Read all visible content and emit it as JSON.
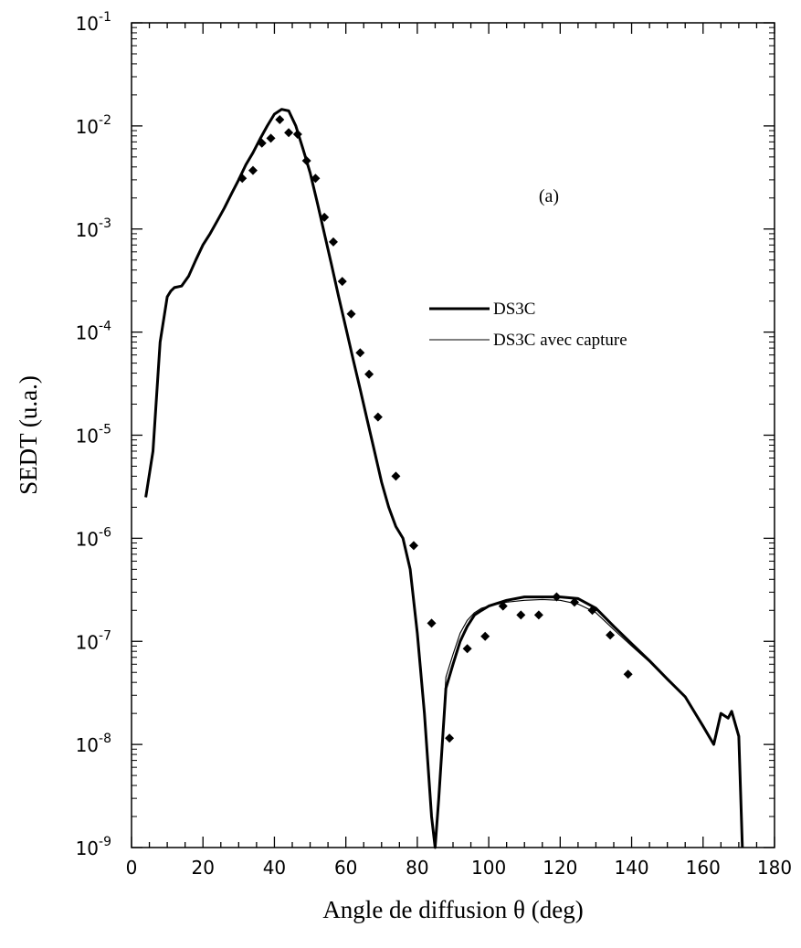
{
  "chart_data": {
    "type": "line",
    "title": "",
    "panel_label": "(a)",
    "xlabel": "Angle de diffusion θ (deg)",
    "ylabel": "SEDT (u.a.)",
    "xlim": [
      0,
      180
    ],
    "ylim": [
      1e-09,
      0.1
    ],
    "yscale": "log",
    "x_ticks": [
      0,
      20,
      40,
      60,
      80,
      100,
      120,
      140,
      160,
      180
    ],
    "y_tick_exponents": [
      -9,
      -8,
      -7,
      -6,
      -5,
      -4,
      -3,
      -2,
      -1
    ],
    "grid": false,
    "legend_position": "center-right",
    "series": [
      {
        "name": "DS3C",
        "style": "thick-solid",
        "color": "#000000",
        "x": [
          4,
          6,
          8,
          10,
          11,
          12,
          14,
          16,
          18,
          20,
          22,
          24,
          26,
          28,
          30,
          32,
          34,
          36,
          38,
          40,
          42,
          44,
          46,
          48,
          50,
          52,
          54,
          56,
          58,
          60,
          62,
          64,
          66,
          68,
          70,
          72,
          74,
          76,
          78,
          80,
          82,
          84,
          85,
          86,
          88,
          90,
          92,
          94,
          96,
          98,
          100,
          105,
          110,
          115,
          120,
          125,
          130,
          135,
          140,
          145,
          150,
          155,
          160,
          163,
          165,
          167,
          168,
          170,
          171
        ],
        "y": [
          2.5e-06,
          7e-06,
          8e-05,
          0.00022,
          0.00025,
          0.00027,
          0.00028,
          0.00035,
          0.0005,
          0.0007,
          0.0009,
          0.0012,
          0.0016,
          0.0022,
          0.003,
          0.0042,
          0.0055,
          0.0075,
          0.01,
          0.013,
          0.0145,
          0.014,
          0.01,
          0.006,
          0.0035,
          0.0018,
          0.0009,
          0.00045,
          0.00022,
          0.00011,
          5.5e-05,
          2.8e-05,
          1.4e-05,
          7e-06,
          3.5e-06,
          2e-06,
          1.3e-06,
          1e-06,
          5e-07,
          1.2e-07,
          2e-08,
          2e-09,
          1e-09,
          3e-09,
          3.5e-08,
          6e-08,
          1e-07,
          1.4e-07,
          1.8e-07,
          2e-07,
          2.2e-07,
          2.5e-07,
          2.7e-07,
          2.7e-07,
          2.7e-07,
          2.6e-07,
          2.1e-07,
          1.4e-07,
          9.5e-08,
          6.5e-08,
          4.3e-08,
          2.9e-08,
          1.5e-08,
          1e-08,
          2e-08,
          1.8e-08,
          2.1e-08,
          1.2e-08,
          1e-09
        ]
      },
      {
        "name": "DS3C avec capture",
        "style": "thin-solid",
        "color": "#000000",
        "x": [
          4,
          6,
          8,
          10,
          11,
          12,
          14,
          16,
          18,
          20,
          22,
          24,
          26,
          28,
          30,
          32,
          34,
          36,
          38,
          40,
          42,
          44,
          46,
          48,
          50,
          52,
          54,
          56,
          58,
          60,
          62,
          64,
          66,
          68,
          70,
          72,
          74,
          76,
          78,
          80,
          82,
          84,
          85,
          86,
          88,
          90,
          92,
          94,
          96,
          98,
          100,
          105,
          110,
          115,
          120,
          125,
          130,
          135,
          140,
          145,
          150,
          155,
          160,
          163,
          165,
          167,
          168,
          170,
          171
        ],
        "y": [
          2.5e-06,
          7e-06,
          8e-05,
          0.00022,
          0.00025,
          0.00027,
          0.00028,
          0.00035,
          0.0005,
          0.0007,
          0.0009,
          0.0012,
          0.0016,
          0.0022,
          0.003,
          0.0042,
          0.0055,
          0.0075,
          0.01,
          0.013,
          0.0145,
          0.014,
          0.01,
          0.006,
          0.0035,
          0.0018,
          0.0009,
          0.00045,
          0.00022,
          0.00011,
          5.5e-05,
          2.8e-05,
          1.4e-05,
          7e-06,
          3.5e-06,
          2e-06,
          1.3e-06,
          1e-06,
          5e-07,
          1.2e-07,
          2e-08,
          2e-09,
          1e-09,
          3e-09,
          4.5e-08,
          7.5e-08,
          1.2e-07,
          1.6e-07,
          1.9e-07,
          2.1e-07,
          2.2e-07,
          2.4e-07,
          2.5e-07,
          2.55e-07,
          2.5e-07,
          2.3e-07,
          1.9e-07,
          1.3e-07,
          9e-08,
          6.3e-08,
          4.2e-08,
          2.9e-08,
          1.5e-08,
          1e-08,
          2e-08,
          1.8e-08,
          2.1e-08,
          1.2e-08,
          1e-09
        ]
      },
      {
        "name": "",
        "style": "diamond-markers",
        "color": "#000000",
        "x": [
          31,
          34,
          36.5,
          39,
          41.5,
          44,
          46.5,
          49,
          51.5,
          54,
          56.5,
          59,
          61.5,
          64,
          66.5,
          69,
          74,
          79,
          84,
          89,
          94,
          99,
          104,
          109,
          114,
          119,
          124,
          129,
          134,
          139
        ],
        "y": [
          0.0031,
          0.0037,
          0.0068,
          0.0076,
          0.0115,
          0.0086,
          0.0083,
          0.0046,
          0.0031,
          0.0013,
          0.00075,
          0.00031,
          0.00015,
          6.3e-05,
          3.9e-05,
          1.5e-05,
          4e-06,
          8.5e-07,
          1.5e-07,
          1.15e-08,
          8.5e-08,
          1.12e-07,
          2.2e-07,
          1.8e-07,
          1.8e-07,
          2.7e-07,
          2.4e-07,
          2e-07,
          1.15e-07,
          4.8e-08
        ]
      }
    ]
  }
}
